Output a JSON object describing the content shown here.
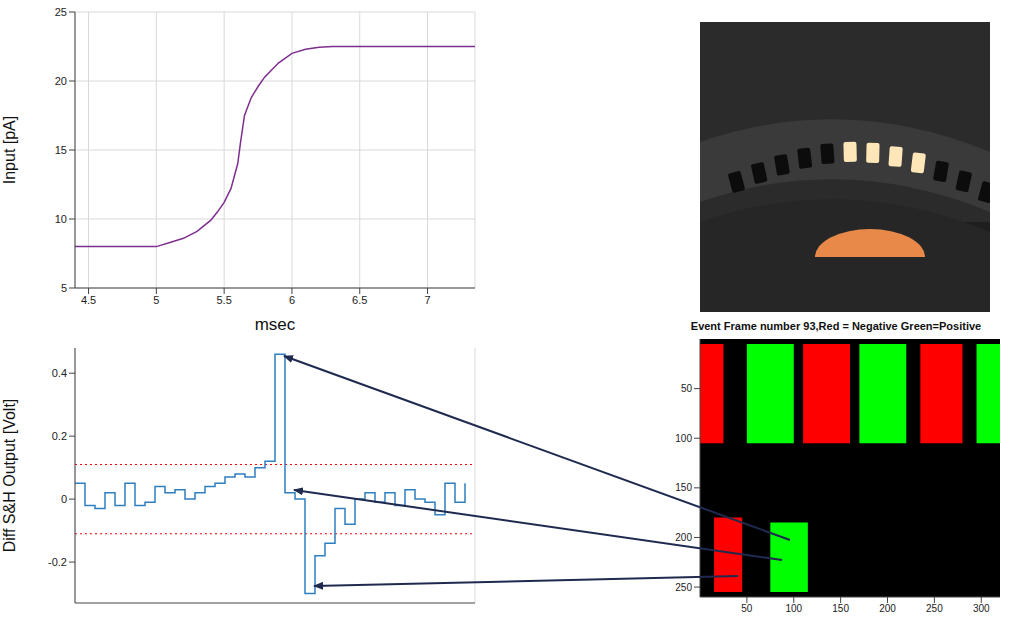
{
  "chart_data": [
    {
      "type": "line",
      "x_label": "msec",
      "y_label": "Input [pA]",
      "color": "#7e2f8e",
      "grid": true,
      "x": [
        4.4,
        4.6,
        4.8,
        5.0,
        5.1,
        5.2,
        5.3,
        5.4,
        5.45,
        5.5,
        5.55,
        5.6,
        5.62,
        5.65,
        5.7,
        5.75,
        5.8,
        5.9,
        6.0,
        6.1,
        6.2,
        6.3,
        6.5,
        7.0,
        7.35
      ],
      "values": [
        8,
        8,
        8,
        8,
        8.3,
        8.6,
        9.1,
        9.9,
        10.5,
        11.2,
        12.2,
        14,
        15.5,
        17.5,
        18.8,
        19.6,
        20.3,
        21.3,
        22.0,
        22.3,
        22.45,
        22.5,
        22.5,
        22.5,
        22.5
      ],
      "xlim": [
        4.4,
        7.35
      ],
      "xticks": [
        4.5,
        5,
        5.5,
        6,
        6.5,
        7
      ],
      "ylim": [
        5,
        25
      ],
      "yticks": [
        5,
        10,
        15,
        20,
        25
      ]
    },
    {
      "type": "step",
      "y_label": "Diff S&H Output [Volt]",
      "color": "#2e7fc0",
      "grid": "x",
      "tick_labels": "y",
      "x": [
        0,
        1,
        2,
        3,
        4,
        5,
        6,
        7,
        8,
        9,
        10,
        11,
        12,
        13,
        14,
        15,
        16,
        17,
        18,
        19,
        20,
        21,
        22,
        23,
        24,
        25,
        26,
        27,
        28,
        29,
        30,
        31,
        32,
        33,
        34,
        35,
        36,
        37,
        38,
        39
      ],
      "values": [
        0.05,
        -0.02,
        -0.03,
        0.02,
        -0.02,
        0.05,
        -0.02,
        -0.01,
        0.04,
        0.02,
        0.03,
        0.0,
        0.02,
        0.04,
        0.05,
        0.07,
        0.08,
        0.07,
        0.1,
        0.12,
        0.46,
        0.02,
        0.0,
        -0.3,
        -0.18,
        -0.14,
        -0.03,
        -0.08,
        0.0,
        0.02,
        -0.01,
        0.02,
        -0.02,
        0.03,
        0.0,
        -0.01,
        -0.05,
        0.05,
        -0.01,
        0.05
      ],
      "xlim": [
        0,
        40
      ],
      "xticks": [
        0,
        1,
        2,
        3,
        4,
        5,
        6,
        7,
        8,
        9,
        10,
        11,
        12,
        13,
        14,
        15,
        16,
        17,
        18,
        19,
        20,
        21,
        22,
        23,
        24,
        25,
        26,
        27,
        28,
        29,
        30,
        31,
        32,
        33,
        34,
        35,
        36,
        37,
        38,
        39,
        40
      ],
      "ylim": [
        -0.33,
        0.48
      ],
      "yticks": [
        -0.2,
        0,
        0.2,
        0.4
      ],
      "hlines": [
        {
          "value": 0.11,
          "color": "#ff0000",
          "line_style": "dotted"
        },
        {
          "value": -0.11,
          "color": "#ff0000",
          "line_style": "dotted"
        }
      ]
    },
    {
      "type": "image",
      "title": "Event Frame number 93,Red = Negative Green=Positive",
      "grid": false,
      "background": "#000000",
      "xlim": [
        0,
        320
      ],
      "xticks": [
        50,
        100,
        150,
        200,
        250,
        300
      ],
      "ylim": [
        0,
        260
      ],
      "yticks": [
        50,
        100,
        150,
        200,
        250
      ],
      "regions": [
        {
          "x": [
            0,
            25
          ],
          "y": [
            5,
            105
          ],
          "color": "#ff0000"
        },
        {
          "x": [
            50,
            100
          ],
          "y": [
            5,
            105
          ],
          "color": "#00ff00"
        },
        {
          "x": [
            110,
            160
          ],
          "y": [
            5,
            105
          ],
          "color": "#ff0000"
        },
        {
          "x": [
            170,
            220
          ],
          "y": [
            5,
            105
          ],
          "color": "#00ff00"
        },
        {
          "x": [
            235,
            280
          ],
          "y": [
            5,
            105
          ],
          "color": "#ff0000"
        },
        {
          "x": [
            295,
            320
          ],
          "y": [
            5,
            105
          ],
          "color": "#00ff00"
        },
        {
          "x": [
            15,
            45
          ],
          "y": [
            180,
            255
          ],
          "color": "#ff0000"
        },
        {
          "x": [
            75,
            115
          ],
          "y": [
            185,
            255
          ],
          "color": "#00ff00"
        }
      ]
    }
  ]
}
